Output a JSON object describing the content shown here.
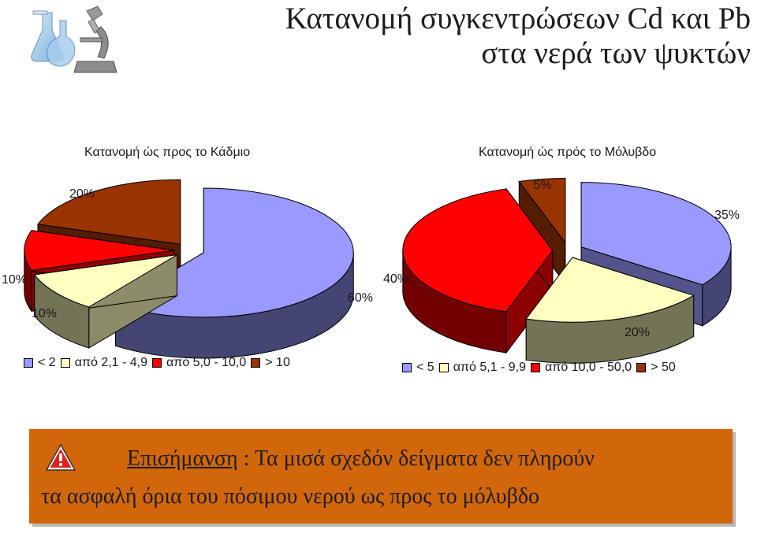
{
  "title": {
    "line1": "Κατανομή συγκεντρώσεων Cd και Pb",
    "line2": "στα νερά των ψυκτών"
  },
  "logo_icon": "laboratory-flasks-microscope-icon",
  "colors": {
    "blue": "#9999ff",
    "yellow": "#ffffc0",
    "red": "#ff0000",
    "brown": "#993300",
    "note_bg": "#d2660a"
  },
  "chart_data": [
    {
      "type": "pie",
      "title": "Κατανομή ώς προς το Κάδμιο",
      "categories": [
        "< 2",
        "από 2,1 - 4,9",
        "από 5,0 - 10,0",
        "> 10"
      ],
      "values": [
        60,
        10,
        10,
        20
      ],
      "labels": [
        "60%",
        "10%",
        "10%",
        "20%"
      ],
      "colors": [
        "#9999ff",
        "#ffffc0",
        "#ff0000",
        "#993300"
      ],
      "style": "3d-exploded",
      "legend_position": "bottom"
    },
    {
      "type": "pie",
      "title": "Κατανομή ώς πρός το Μόλυβδο",
      "categories": [
        "< 5",
        "από 5,1 - 9,9",
        "από 10,0 - 50,0",
        "> 50"
      ],
      "values": [
        35,
        20,
        40,
        5
      ],
      "labels": [
        "35%",
        "20%",
        "40%",
        "5%"
      ],
      "colors": [
        "#9999ff",
        "#ffffc0",
        "#ff0000",
        "#993300"
      ],
      "style": "3d-exploded",
      "legend_position": "bottom"
    }
  ],
  "note": {
    "icon": "warning-triangle-icon",
    "heading": "Επισήμανση",
    "separator": " : ",
    "text_line1": "Τα μισά σχεδόν δείγματα δεν πληρούν",
    "text_line2": "τα ασφαλή όρια του πόσιμου νερού ως προς το μόλυβδο"
  }
}
